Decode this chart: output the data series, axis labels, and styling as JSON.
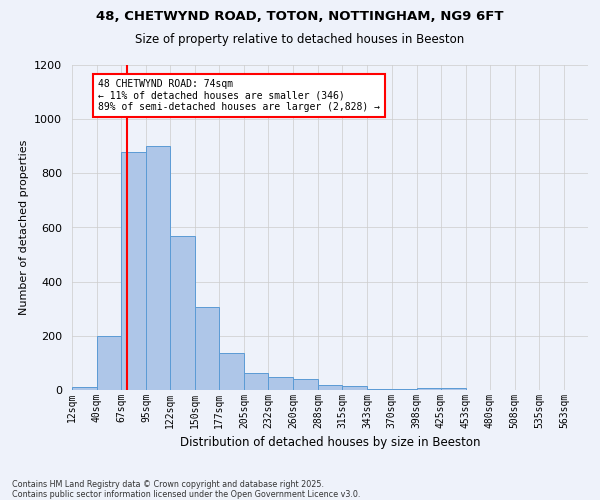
{
  "title_line1": "48, CHETWYND ROAD, TOTON, NOTTINGHAM, NG9 6FT",
  "title_line2": "Size of property relative to detached houses in Beeston",
  "xlabel": "Distribution of detached houses by size in Beeston",
  "ylabel": "Number of detached properties",
  "footnote": "Contains HM Land Registry data © Crown copyright and database right 2025.\nContains public sector information licensed under the Open Government Licence v3.0.",
  "bar_labels": [
    "12sqm",
    "40sqm",
    "67sqm",
    "95sqm",
    "122sqm",
    "150sqm",
    "177sqm",
    "205sqm",
    "232sqm",
    "260sqm",
    "288sqm",
    "315sqm",
    "343sqm",
    "370sqm",
    "398sqm",
    "425sqm",
    "453sqm",
    "480sqm",
    "508sqm",
    "535sqm",
    "563sqm"
  ],
  "bin_values": [
    12,
    200,
    880,
    900,
    570,
    305,
    135,
    62,
    48,
    40,
    18,
    15,
    5,
    3,
    8,
    8,
    0,
    0,
    0,
    0,
    0
  ],
  "bar_color": "#aec6e8",
  "bar_edge_color": "#5b9bd5",
  "grid_color": "#cccccc",
  "background_color": "#eef2fa",
  "vline_x_bin": 2,
  "vline_color": "red",
  "annotation_text": "48 CHETWYND ROAD: 74sqm\n← 11% of detached houses are smaller (346)\n89% of semi-detached houses are larger (2,828) →",
  "annotation_box_color": "white",
  "annotation_box_edgecolor": "red",
  "ylim": [
    0,
    1200
  ],
  "yticks": [
    0,
    200,
    400,
    600,
    800,
    1000,
    1200
  ],
  "bin_edges": [
    12,
    40,
    67,
    95,
    122,
    150,
    177,
    205,
    232,
    260,
    288,
    315,
    343,
    370,
    398,
    425,
    453,
    480,
    508,
    535,
    563,
    590
  ],
  "vline_x_val": 74
}
